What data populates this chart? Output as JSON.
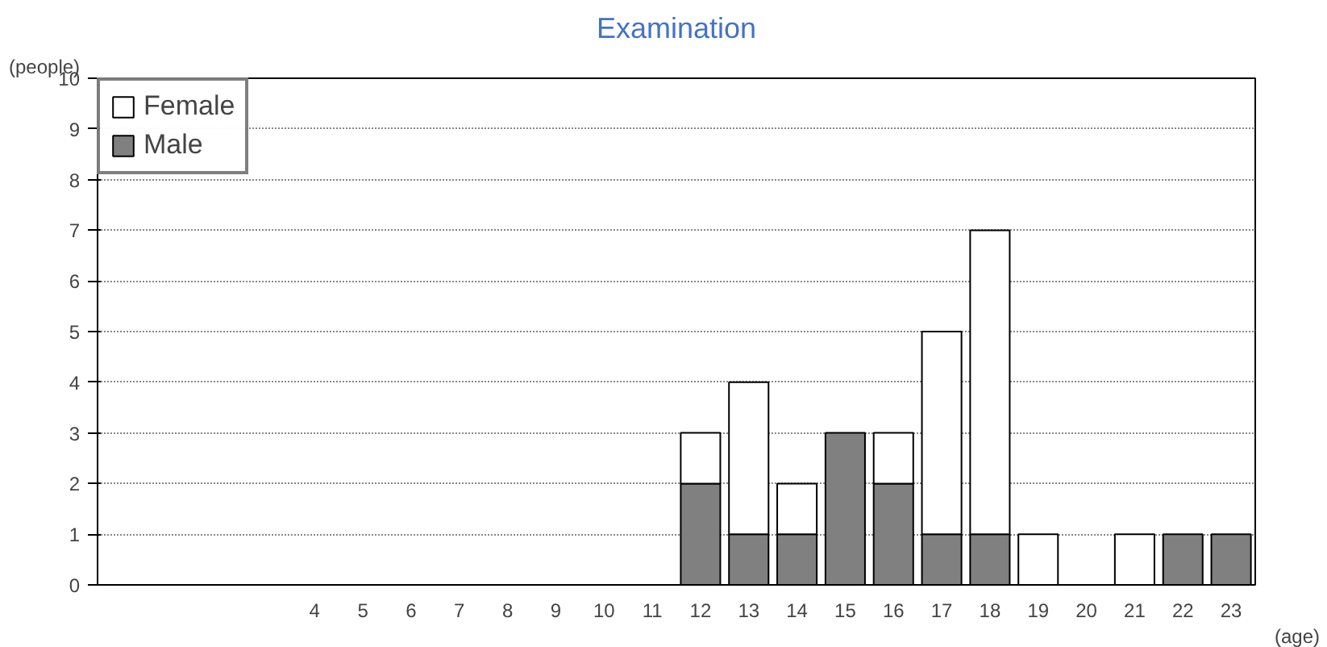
{
  "chart_data": {
    "type": "bar",
    "title": "Examination",
    "xlabel": "(age)",
    "ylabel": "(people)",
    "categories": [
      null,
      null,
      null,
      null,
      "4",
      "5",
      "6",
      "7",
      "8",
      "9",
      "10",
      "11",
      "12",
      "13",
      "14",
      "15",
      "16",
      "17",
      "18",
      "19",
      "20",
      "21",
      "22",
      "23"
    ],
    "stacked": true,
    "series": [
      {
        "name": "Male",
        "color": "#808080",
        "values": [
          null,
          null,
          null,
          null,
          null,
          null,
          null,
          null,
          null,
          null,
          null,
          null,
          2,
          1,
          1,
          3,
          2,
          1,
          1,
          null,
          null,
          null,
          1,
          1
        ]
      },
      {
        "name": "Female",
        "color": "#ffffff",
        "values": [
          null,
          null,
          null,
          null,
          null,
          null,
          null,
          null,
          null,
          null,
          null,
          null,
          1,
          3,
          1,
          null,
          1,
          4,
          6,
          1,
          null,
          1,
          null,
          null
        ]
      }
    ],
    "ylim": [
      0,
      10
    ],
    "yticks": [
      0,
      1,
      2,
      3,
      4,
      5,
      6,
      7,
      8,
      9,
      10
    ],
    "grid": "y",
    "legend": "top left"
  }
}
